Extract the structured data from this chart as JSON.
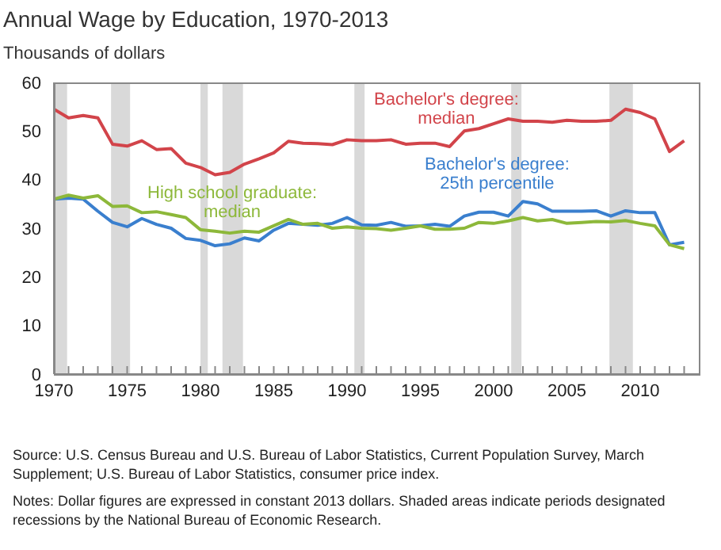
{
  "chart_data": {
    "type": "line",
    "title": "Annual Wage by Education, 1970-2013",
    "ylabel": "Thousands of dollars",
    "x": [
      1970,
      1971,
      1972,
      1973,
      1974,
      1975,
      1976,
      1977,
      1978,
      1979,
      1980,
      1981,
      1982,
      1983,
      1984,
      1985,
      1986,
      1987,
      1988,
      1989,
      1990,
      1991,
      1992,
      1993,
      1994,
      1995,
      1996,
      1997,
      1998,
      1999,
      2000,
      2001,
      2002,
      2003,
      2004,
      2005,
      2006,
      2007,
      2008,
      2009,
      2010,
      2011,
      2012,
      2013
    ],
    "series": [
      {
        "name": "Bachelor's degree: median",
        "color": "#d2444a",
        "values": [
          54.5,
          52.7,
          53.2,
          52.7,
          47.3,
          46.9,
          48,
          46.2,
          46.4,
          43.4,
          42.5,
          41,
          41.5,
          43.2,
          44.3,
          45.5,
          47.9,
          47.5,
          47.4,
          47.2,
          48.2,
          48,
          48,
          48.2,
          47.3,
          47.5,
          47.5,
          46.8,
          50,
          50.5,
          51.5,
          52.5,
          52,
          52,
          51.8,
          52.2,
          52,
          52,
          52.2,
          54.5,
          53.8,
          52.5,
          45.8,
          48
        ]
      },
      {
        "name": "Bachelor's degree: 25th percentile",
        "color": "#3a7fce",
        "values": [
          36,
          36.2,
          36,
          33.5,
          31.2,
          30.3,
          32,
          30.8,
          30,
          27.9,
          27.5,
          26.4,
          26.8,
          28,
          27.4,
          29.6,
          31,
          30.8,
          30.6,
          31,
          32.2,
          30.7,
          30.6,
          31.2,
          30.4,
          30.5,
          30.8,
          30.4,
          32.5,
          33.3,
          33.3,
          32.5,
          35.5,
          35,
          33.5,
          33.5,
          33.5,
          33.6,
          32.5,
          33.6,
          33.2,
          33.2,
          26.6,
          27.1
        ]
      },
      {
        "name": "High school graduate: median",
        "color": "#8db83a",
        "values": [
          36,
          36.8,
          36.2,
          36.7,
          34.5,
          34.6,
          33.2,
          33.4,
          32.8,
          32.2,
          29.7,
          29.4,
          29,
          29.4,
          29.2,
          30.5,
          31.8,
          30.8,
          31,
          30,
          30.3,
          30,
          29.9,
          29.6,
          30,
          30.5,
          29.8,
          29.8,
          30,
          31.2,
          31,
          31.5,
          32.2,
          31.5,
          31.8,
          31,
          31.2,
          31.4,
          31.3,
          31.6,
          31,
          30.5,
          26.6,
          25.8
        ]
      }
    ],
    "xlim": [
      1970,
      2014
    ],
    "xticks": [
      1970,
      {
        "value": 1971,
        "label": null
      },
      {
        "value": 1972,
        "label": null
      },
      {
        "value": 1973,
        "label": null
      },
      {
        "value": 1974,
        "label": null
      },
      1975,
      {
        "value": 1976,
        "label": null
      },
      {
        "value": 1977,
        "label": null
      },
      {
        "value": 1978,
        "label": null
      },
      {
        "value": 1979,
        "label": null
      },
      1980,
      {
        "value": 1981,
        "label": null
      },
      {
        "value": 1982,
        "label": null
      },
      {
        "value": 1983,
        "label": null
      },
      {
        "value": 1984,
        "label": null
      },
      1985,
      {
        "value": 1986,
        "label": null
      },
      {
        "value": 1987,
        "label": null
      },
      {
        "value": 1988,
        "label": null
      },
      {
        "value": 1989,
        "label": null
      },
      1990,
      {
        "value": 1991,
        "label": null
      },
      {
        "value": 1992,
        "label": null
      },
      {
        "value": 1993,
        "label": null
      },
      {
        "value": 1994,
        "label": null
      },
      1995,
      {
        "value": 1996,
        "label": null
      },
      {
        "value": 1997,
        "label": null
      },
      {
        "value": 1998,
        "label": null
      },
      {
        "value": 1999,
        "label": null
      },
      2000,
      {
        "value": 2001,
        "label": null
      },
      {
        "value": 2002,
        "label": null
      },
      {
        "value": 2003,
        "label": null
      },
      {
        "value": 2004,
        "label": null
      },
      2005,
      {
        "value": 2006,
        "label": null
      },
      {
        "value": 2007,
        "label": null
      },
      {
        "value": 2008,
        "label": null
      },
      {
        "value": 2009,
        "label": null
      },
      2010,
      {
        "value": 2011,
        "label": null
      },
      {
        "value": 2012,
        "label": null
      },
      {
        "value": 2013,
        "label": null
      }
    ],
    "ylim": [
      0,
      60
    ],
    "yticks": [
      0,
      10,
      20,
      30,
      40,
      50,
      60
    ],
    "bands": [
      {
        "axis": "x",
        "from": 1970,
        "to": 1970.9,
        "color": "#d9d9d9"
      },
      {
        "axis": "x",
        "from": 1973.9,
        "to": 1975.2,
        "color": "#d9d9d9"
      },
      {
        "axis": "x",
        "from": 1980,
        "to": 1980.5,
        "color": "#d9d9d9"
      },
      {
        "axis": "x",
        "from": 1981.5,
        "to": 1982.9,
        "color": "#d9d9d9"
      },
      {
        "axis": "x",
        "from": 1990.5,
        "to": 1991.2,
        "color": "#d9d9d9"
      },
      {
        "axis": "x",
        "from": 2001.2,
        "to": 2001.9,
        "color": "#d9d9d9"
      },
      {
        "axis": "x",
        "from": 2007.9,
        "to": 2009.5,
        "color": "#d9d9d9"
      }
    ],
    "grid": false,
    "legend": false,
    "marker": "none",
    "line_style": "solid",
    "annotations": [
      "Source: U.S. Census Bureau and U.S. Bureau of Labor Statistics, Current Population Survey, March Supplement; U.S. Bureau of Labor Statistics, consumer price index.",
      "Notes: Dollar figures are expressed in constant 2013 dollars. Shaded areas indicate periods designated recessions by the National Bureau of Economic Research."
    ]
  }
}
